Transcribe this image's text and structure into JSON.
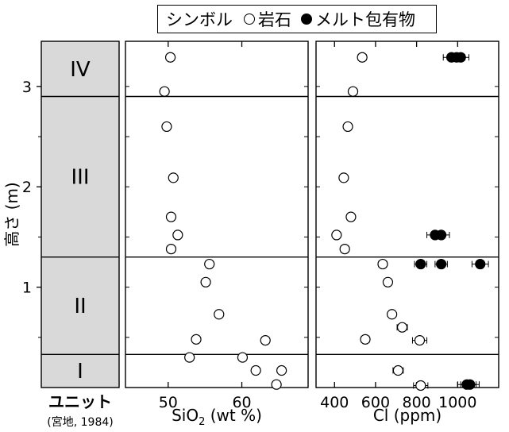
{
  "legend": {
    "title": "シンボル",
    "open_label": "岩石",
    "filled_label": "メルト包有物"
  },
  "unit_column": {
    "label": "ユニット",
    "credit": "(宮地, 1984)",
    "units": [
      {
        "name": "IV",
        "range": [
          2.9,
          3.45
        ]
      },
      {
        "name": "III",
        "range": [
          1.3,
          2.9
        ]
      },
      {
        "name": "II",
        "range": [
          0.33,
          1.3
        ]
      },
      {
        "name": "I",
        "range": [
          0.0,
          0.33
        ]
      }
    ]
  },
  "colors": {
    "unit_fill": "#d9d9d9",
    "line": "#000000",
    "background": "#ffffff"
  },
  "chart_data": [
    {
      "type": "scatter",
      "xlabel": "SiO2 (wt %)",
      "xlabel_main": "SiO",
      "xlabel_sub": "2",
      "xlabel_rest": " (wt %)",
      "ylabel": "高さ (m)",
      "xlim": [
        44.2,
        69
      ],
      "ylim": [
        0,
        3.45
      ],
      "xticks": [
        50,
        60
      ],
      "yticks": [
        1,
        2,
        3
      ],
      "boundaries": [
        0.33,
        1.3,
        2.9
      ],
      "series": [
        {
          "marker": "open",
          "points": [
            [
              50.3,
              3.29
            ],
            [
              49.5,
              2.95
            ],
            [
              49.8,
              2.6
            ],
            [
              50.7,
              2.09
            ],
            [
              50.4,
              1.7
            ],
            [
              51.3,
              1.52
            ],
            [
              50.4,
              1.38
            ],
            [
              55.6,
              1.23
            ],
            [
              55.1,
              1.05
            ],
            [
              56.9,
              0.73
            ],
            [
              53.8,
              0.48
            ],
            [
              63.2,
              0.47
            ],
            [
              52.9,
              0.3
            ],
            [
              60.1,
              0.3
            ],
            [
              61.9,
              0.17
            ],
            [
              65.4,
              0.17
            ],
            [
              64.7,
              0.03
            ]
          ]
        }
      ]
    },
    {
      "type": "scatter",
      "xlabel": "Cl (ppm)",
      "xlim": [
        310,
        1200
      ],
      "ylim": [
        0,
        3.45
      ],
      "xticks": [
        400,
        600,
        800,
        1000
      ],
      "boundaries": [
        0.33,
        1.3,
        2.9
      ],
      "series": [
        {
          "marker": "open",
          "points": [
            [
              535,
              3.29,
              20
            ],
            [
              490,
              2.95,
              0
            ],
            [
              465,
              2.6,
              15
            ],
            [
              445,
              2.09,
              0
            ],
            [
              480,
              1.7,
              15
            ],
            [
              410,
              1.52,
              0
            ],
            [
              450,
              1.38,
              15
            ],
            [
              635,
              1.23,
              20
            ],
            [
              660,
              1.05,
              15
            ],
            [
              680,
              0.73,
              15
            ],
            [
              730,
              0.6,
              25
            ],
            [
              815,
              0.47,
              35
            ],
            [
              550,
              0.48,
              20
            ],
            [
              710,
              0.17,
              25
            ],
            [
              820,
              0.02,
              35
            ]
          ]
        },
        {
          "marker": "filled",
          "points": [
            [
              970,
              3.29,
              40
            ],
            [
              995,
              3.29,
              40
            ],
            [
              1015,
              3.29,
              40
            ],
            [
              890,
              1.52,
              40
            ],
            [
              920,
              1.52,
              40
            ],
            [
              820,
              1.23,
              30
            ],
            [
              920,
              1.23,
              30
            ],
            [
              1110,
              1.23,
              40
            ],
            [
              1045,
              0.03,
              45
            ],
            [
              1060,
              0.03,
              45
            ]
          ]
        }
      ]
    }
  ]
}
